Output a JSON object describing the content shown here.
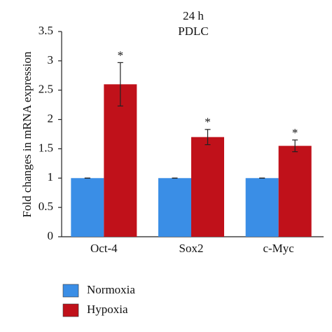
{
  "chart_data": {
    "type": "bar",
    "title": "24 h",
    "subtitle": "PDLC",
    "y_label": "Fold changes in mRNA expression",
    "categories": [
      "Oct-4",
      "Sox2",
      "c-Myc"
    ],
    "series": [
      {
        "name": "Normoxia",
        "color": "#3a8ee6",
        "values": [
          1,
          1,
          1
        ],
        "errors": [
          0,
          0,
          0
        ]
      },
      {
        "name": "Hypoxia",
        "color": "#c0111a",
        "values": [
          2.6,
          1.7,
          1.55
        ],
        "errors": [
          0.37,
          0.13,
          0.1
        ],
        "annotations": [
          "*",
          "*",
          "*"
        ]
      }
    ],
    "ylim": [
      0,
      3.5
    ],
    "yticks": [
      0,
      0.5,
      1,
      1.5,
      2,
      2.5,
      3,
      3.5
    ],
    "grid": false
  }
}
